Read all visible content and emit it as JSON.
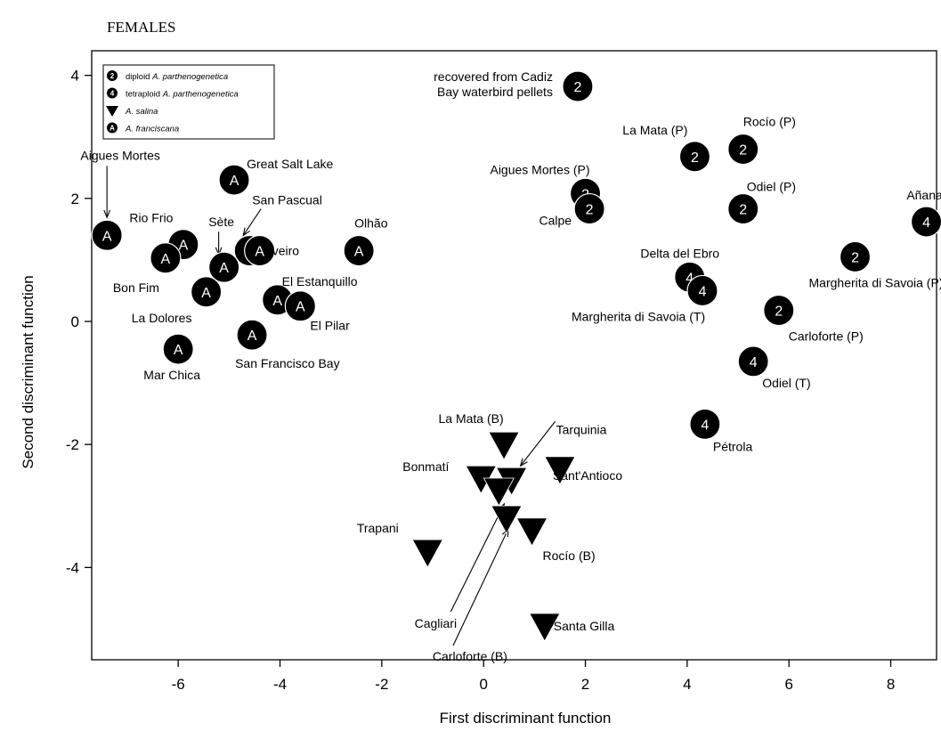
{
  "chart_data": {
    "type": "scatter",
    "title": "FEMALES",
    "xlabel": "First discriminant function",
    "ylabel": "Second discriminant function",
    "xlim": [
      -7.7,
      8.9
    ],
    "ylim": [
      -5.5,
      4.4
    ],
    "xticks": [
      -6,
      -4,
      -2,
      0,
      2,
      4,
      6,
      8
    ],
    "yticks": [
      -4,
      -2,
      0,
      2,
      4
    ],
    "grid": false,
    "legend_position": "top-left",
    "legend": [
      {
        "symbol": "2",
        "prefix": "diploid ",
        "species": "A. parthenogenetica"
      },
      {
        "symbol": "4",
        "prefix": "tetraploid ",
        "species": "A. parthenogenetica"
      },
      {
        "symbol": "triangle",
        "prefix": "",
        "species": "A. salina"
      },
      {
        "symbol": "A",
        "prefix": "",
        "species": "A. franciscana"
      }
    ],
    "series": [
      {
        "name": "diploid A. parthenogenetica",
        "marker": "2",
        "points": [
          {
            "label": "recovered from Cadiz Bay waterbird pellets",
            "x": 1.85,
            "y": 3.82
          },
          {
            "label": "La Mata (P)",
            "x": 4.15,
            "y": 2.68
          },
          {
            "label": "Rocío (P)",
            "x": 5.1,
            "y": 2.8
          },
          {
            "label": "Aigues Mortes (P)",
            "x": 2.0,
            "y": 2.08
          },
          {
            "label": "Calpe",
            "x": 2.08,
            "y": 1.83
          },
          {
            "label": "Odiel (P)",
            "x": 5.1,
            "y": 1.83
          },
          {
            "label": "Margherita di Savoia (P)",
            "x": 7.3,
            "y": 1.05
          },
          {
            "label": "Carloforte (P)",
            "x": 5.8,
            "y": 0.18
          }
        ]
      },
      {
        "name": "tetraploid A. parthenogenetica",
        "marker": "4",
        "points": [
          {
            "label": "Añana",
            "x": 8.7,
            "y": 1.62
          },
          {
            "label": "Delta del Ebro",
            "x": 4.05,
            "y": 0.72
          },
          {
            "label": "Margherita di Savoia (T)",
            "x": 4.3,
            "y": 0.5
          },
          {
            "label": "Odiel (T)",
            "x": 5.3,
            "y": -0.65
          },
          {
            "label": "Pétrola",
            "x": 4.35,
            "y": -1.67
          }
        ]
      },
      {
        "name": "A. salina",
        "marker": "triangle",
        "points": [
          {
            "label": "La Mata (B)",
            "x": 0.4,
            "y": -2.0
          },
          {
            "label": "Tarquinia",
            "x": 0.55,
            "y": -2.58
          },
          {
            "label": "Bonmatí",
            "x": -0.05,
            "y": -2.55
          },
          {
            "label": "Sant'Antioco",
            "x": 1.5,
            "y": -2.4
          },
          {
            "label": "Cagliari",
            "x": 0.3,
            "y": -2.75
          },
          {
            "label": "Carloforte (B)",
            "x": 0.45,
            "y": -3.2
          },
          {
            "label": "Rocío (B)",
            "x": 0.95,
            "y": -3.4
          },
          {
            "label": "Trapani",
            "x": -1.1,
            "y": -3.75
          },
          {
            "label": "Santa Gilla",
            "x": 1.2,
            "y": -4.95
          }
        ]
      },
      {
        "name": "A. franciscana",
        "marker": "A",
        "points": [
          {
            "label": "Aigues Mortes",
            "x": -7.4,
            "y": 1.4
          },
          {
            "label": "Great Salt Lake",
            "x": -4.9,
            "y": 2.3
          },
          {
            "label": "Rio Frio",
            "x": -5.9,
            "y": 1.25
          },
          {
            "label": "Bon Fim",
            "x": -6.25,
            "y": 1.03
          },
          {
            "label": "Sète",
            "x": -5.1,
            "y": 0.88
          },
          {
            "label": "San Pascual",
            "x": -4.6,
            "y": 1.15
          },
          {
            "label": "Aveiro",
            "x": -4.4,
            "y": 1.15
          },
          {
            "label": "Olhão",
            "x": -2.45,
            "y": 1.15
          },
          {
            "label": "La Dolores",
            "x": -5.45,
            "y": 0.48
          },
          {
            "label": "El Estanquillo",
            "x": -4.05,
            "y": 0.35
          },
          {
            "label": "El Pilar",
            "x": -3.6,
            "y": 0.25
          },
          {
            "label": "Mar Chica",
            "x": -6.0,
            "y": -0.45
          },
          {
            "label": "San Francisco Bay",
            "x": -4.55,
            "y": -0.22
          }
        ]
      }
    ]
  }
}
